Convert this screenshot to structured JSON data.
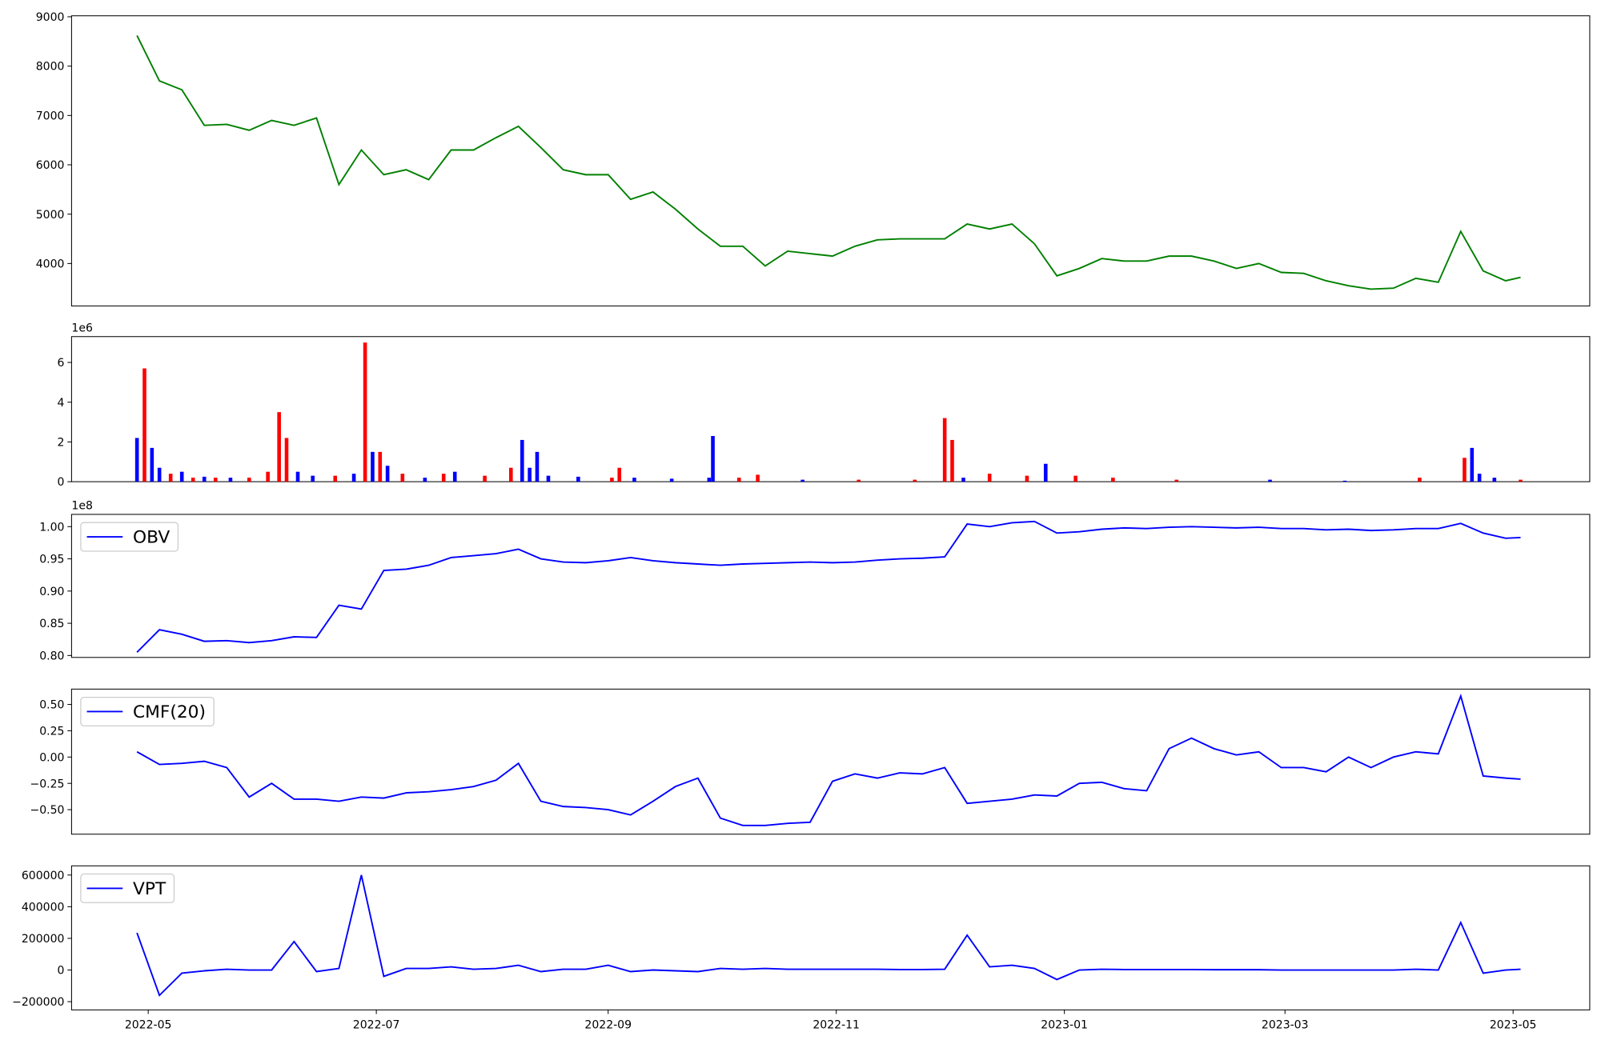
{
  "chart_data": [
    {
      "type": "line",
      "x": [
        -3,
        3,
        9,
        15,
        21,
        27,
        33,
        39,
        45,
        51,
        57,
        63,
        69,
        75,
        81,
        87,
        93,
        99,
        105,
        111,
        117,
        123,
        129,
        135,
        141,
        147,
        153,
        159,
        165,
        171,
        177,
        183,
        189,
        195,
        201,
        207,
        213,
        219,
        225,
        231,
        237,
        243,
        249,
        255,
        261,
        267,
        273,
        279,
        285,
        291,
        297,
        303,
        309,
        315,
        321,
        327,
        333,
        339,
        345,
        351,
        357,
        363,
        367
      ],
      "values": [
        8620,
        7700,
        7520,
        6800,
        6820,
        6700,
        6900,
        6800,
        6950,
        5600,
        6300,
        5800,
        5900,
        5700,
        6300,
        6300,
        6550,
        6780,
        6350,
        5900,
        5800,
        5800,
        5300,
        5450,
        5100,
        4700,
        4350,
        4350,
        3950,
        4250,
        4200,
        4150,
        4350,
        4480,
        4500,
        4500,
        4500,
        4800,
        4700,
        4800,
        4400,
        3750,
        3900,
        4100,
        4050,
        4050,
        4150,
        4150,
        4050,
        3900,
        4000,
        3820,
        3800,
        3650,
        3550,
        3480,
        3500,
        3700,
        3620,
        4650,
        3850,
        3650,
        3720
      ],
      "color": "green",
      "xlim": [
        -20.5,
        385.5
      ],
      "ylim": [
        3140,
        9020
      ],
      "yticks": [
        4000,
        5000,
        6000,
        7000,
        8000,
        9000
      ]
    },
    {
      "type": "bar",
      "x": [
        -3,
        -1,
        1,
        3,
        6,
        9,
        12,
        15,
        18,
        22,
        27,
        32,
        35,
        37,
        40,
        44,
        50,
        55,
        58,
        60,
        62,
        64,
        68,
        74,
        79,
        82,
        90,
        97,
        100,
        102,
        104,
        107,
        115,
        124,
        126,
        130,
        140,
        150,
        151,
        158,
        163,
        175,
        190,
        205,
        213,
        215,
        218,
        225,
        235,
        240,
        248,
        258,
        275,
        300,
        320,
        340,
        352,
        354,
        356,
        360,
        367
      ],
      "values": [
        2.2,
        5.7,
        1.7,
        0.7,
        0.4,
        0.5,
        0.2,
        0.25,
        0.2,
        0.2,
        0.2,
        0.5,
        3.5,
        2.2,
        0.5,
        0.3,
        0.3,
        0.4,
        7.0,
        1.5,
        1.5,
        0.8,
        0.4,
        0.2,
        0.4,
        0.5,
        0.3,
        0.7,
        2.1,
        0.7,
        1.5,
        0.3,
        0.25,
        0.2,
        0.7,
        0.2,
        0.15,
        0.2,
        2.3,
        0.2,
        0.35,
        0.1,
        0.1,
        0.1,
        3.2,
        2.1,
        0.2,
        0.4,
        0.3,
        0.9,
        0.3,
        0.2,
        0.1,
        0.1,
        0.05,
        0.2,
        1.2,
        1.7,
        0.4,
        0.2,
        0.1
      ],
      "colors": [
        "blue",
        "red",
        "blue",
        "blue",
        "red",
        "blue",
        "red",
        "blue",
        "red",
        "blue",
        "red",
        "red",
        "red",
        "red",
        "blue",
        "blue",
        "red",
        "blue",
        "red",
        "blue",
        "red",
        "blue",
        "red",
        "blue",
        "red",
        "blue",
        "red",
        "red",
        "blue",
        "blue",
        "blue",
        "blue",
        "blue",
        "red",
        "red",
        "blue",
        "blue",
        "blue",
        "blue",
        "red",
        "red",
        "blue",
        "red",
        "red",
        "red",
        "red",
        "blue",
        "red",
        "red",
        "blue",
        "red",
        "red",
        "red",
        "blue",
        "blue",
        "red",
        "red",
        "blue",
        "blue",
        "blue",
        "red"
      ],
      "xlim": [
        -20.5,
        385.5
      ],
      "ylim": [
        0,
        7.3
      ],
      "yticks": [
        0,
        2,
        4,
        6
      ],
      "offset_label": "1e6"
    },
    {
      "type": "line",
      "x": [
        -3,
        3,
        9,
        15,
        21,
        27,
        33,
        39,
        45,
        51,
        57,
        63,
        69,
        75,
        81,
        87,
        93,
        99,
        105,
        111,
        117,
        123,
        129,
        135,
        141,
        147,
        153,
        159,
        165,
        171,
        177,
        183,
        189,
        195,
        201,
        207,
        213,
        219,
        225,
        231,
        237,
        243,
        249,
        255,
        261,
        267,
        273,
        279,
        285,
        291,
        297,
        303,
        309,
        315,
        321,
        327,
        333,
        339,
        345,
        351,
        357,
        363,
        367
      ],
      "series": [
        {
          "name": "OBV",
          "color": "blue",
          "values": [
            0.805,
            0.84,
            0.833,
            0.822,
            0.823,
            0.82,
            0.823,
            0.829,
            0.828,
            0.878,
            0.872,
            0.932,
            0.934,
            0.94,
            0.952,
            0.955,
            0.958,
            0.965,
            0.95,
            0.945,
            0.944,
            0.947,
            0.952,
            0.947,
            0.944,
            0.942,
            0.94,
            0.942,
            0.943,
            0.944,
            0.945,
            0.944,
            0.945,
            0.948,
            0.95,
            0.951,
            0.953,
            1.004,
            1.0,
            1.006,
            1.008,
            0.99,
            0.992,
            0.996,
            0.998,
            0.997,
            0.999,
            1.0,
            0.999,
            0.998,
            0.999,
            0.997,
            0.997,
            0.995,
            0.996,
            0.994,
            0.995,
            0.997,
            0.997,
            1.005,
            0.99,
            0.982,
            0.983
          ]
        }
      ],
      "xlim": [
        -20.5,
        385.5
      ],
      "ylim": [
        0.797,
        1.019
      ],
      "yticks": [
        {
          "value": 0.8,
          "label": "0.80"
        },
        {
          "value": 0.85,
          "label": "0.85"
        },
        {
          "value": 0.9,
          "label": "0.90"
        },
        {
          "value": 0.95,
          "label": "0.95"
        },
        {
          "value": 1.0,
          "label": "1.00"
        }
      ],
      "offset_label": "1e8",
      "legend": "upper left"
    },
    {
      "type": "line",
      "x": [
        -3,
        3,
        9,
        15,
        21,
        27,
        33,
        39,
        45,
        51,
        57,
        63,
        69,
        75,
        81,
        87,
        93,
        99,
        105,
        111,
        117,
        123,
        129,
        135,
        141,
        147,
        153,
        159,
        165,
        171,
        177,
        183,
        189,
        195,
        201,
        207,
        213,
        219,
        225,
        231,
        237,
        243,
        249,
        255,
        261,
        267,
        273,
        279,
        285,
        291,
        297,
        303,
        309,
        315,
        321,
        327,
        333,
        339,
        345,
        351,
        357,
        363,
        367
      ],
      "series": [
        {
          "name": "CMF(20)",
          "color": "blue",
          "values": [
            0.05,
            -0.07,
            -0.06,
            -0.04,
            -0.1,
            -0.38,
            -0.25,
            -0.4,
            -0.4,
            -0.42,
            -0.38,
            -0.39,
            -0.34,
            -0.33,
            -0.31,
            -0.28,
            -0.22,
            -0.06,
            -0.42,
            -0.47,
            -0.48,
            -0.5,
            -0.55,
            -0.42,
            -0.28,
            -0.2,
            -0.58,
            -0.65,
            -0.65,
            -0.63,
            -0.62,
            -0.23,
            -0.16,
            -0.2,
            -0.15,
            -0.16,
            -0.1,
            -0.44,
            -0.42,
            -0.4,
            -0.36,
            -0.37,
            -0.25,
            -0.24,
            -0.3,
            -0.32,
            0.08,
            0.18,
            0.08,
            0.02,
            0.05,
            -0.1,
            -0.1,
            -0.14,
            0.0,
            -0.1,
            0.0,
            0.05,
            0.03,
            0.58,
            -0.18,
            -0.2,
            -0.21
          ]
        }
      ],
      "xlim": [
        -20.5,
        385.5
      ],
      "ylim": [
        -0.733,
        0.646
      ],
      "yticks": [
        {
          "value": -0.5,
          "label": "−0.50"
        },
        {
          "value": -0.25,
          "label": "−0.25"
        },
        {
          "value": 0,
          "label": "0.00"
        },
        {
          "value": 0.25,
          "label": "0.25"
        },
        {
          "value": 0.5,
          "label": "0.50"
        }
      ],
      "legend": "upper left"
    },
    {
      "type": "line",
      "x": [
        -3,
        3,
        9,
        15,
        21,
        27,
        33,
        39,
        45,
        51,
        57,
        63,
        69,
        75,
        81,
        87,
        93,
        99,
        105,
        111,
        117,
        123,
        129,
        135,
        141,
        147,
        153,
        159,
        165,
        171,
        177,
        183,
        189,
        195,
        201,
        207,
        213,
        219,
        225,
        231,
        237,
        243,
        249,
        255,
        261,
        267,
        273,
        279,
        285,
        291,
        297,
        303,
        309,
        315,
        321,
        327,
        333,
        339,
        345,
        351,
        357,
        363,
        367
      ],
      "series": [
        {
          "name": "VPT",
          "color": "blue",
          "values": [
            235000,
            -160000,
            -20000,
            -5000,
            5000,
            0,
            0,
            180000,
            -10000,
            10000,
            600000,
            -40000,
            10000,
            10000,
            20000,
            5000,
            10000,
            30000,
            -10000,
            5000,
            5000,
            30000,
            -10000,
            0,
            -5000,
            -10000,
            10000,
            5000,
            10000,
            5000,
            5000,
            5000,
            5000,
            5000,
            3000,
            3000,
            5000,
            220000,
            20000,
            30000,
            10000,
            -60000,
            0,
            5000,
            3000,
            3000,
            3000,
            3000,
            2000,
            2000,
            2000,
            0,
            0,
            0,
            0,
            0,
            0,
            5000,
            0,
            300000,
            -20000,
            0,
            5000
          ]
        }
      ],
      "xlim": [
        -20.5,
        385.5
      ],
      "ylim": [
        -252000,
        658000
      ],
      "yticks": [
        {
          "value": -200000,
          "label": "−200000"
        },
        0,
        200000,
        400000,
        600000
      ],
      "xticks": [
        {
          "value": 0,
          "label": "2022-05"
        },
        {
          "value": 61,
          "label": "2022-07"
        },
        {
          "value": 123,
          "label": "2022-09"
        },
        {
          "value": 184,
          "label": "2022-11"
        },
        {
          "value": 245,
          "label": "2023-01"
        },
        {
          "value": 304,
          "label": "2023-03"
        },
        {
          "value": 365,
          "label": "2023-05"
        }
      ],
      "legend": "upper left"
    }
  ]
}
